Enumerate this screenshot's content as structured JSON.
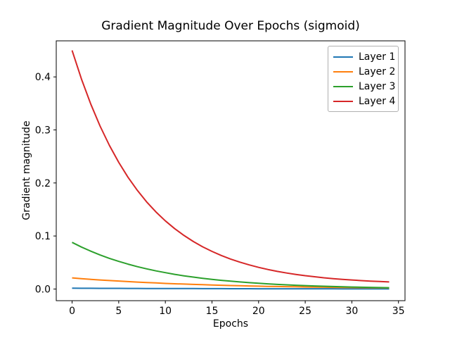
{
  "chart_data": {
    "type": "line",
    "title": "Gradient Magnitude Over Epochs (sigmoid)",
    "xlabel": "Epochs",
    "ylabel": "Gradient magnitude",
    "x": [
      0,
      1,
      2,
      3,
      4,
      5,
      6,
      7,
      8,
      9,
      10,
      11,
      12,
      13,
      14,
      15,
      16,
      17,
      18,
      19,
      20,
      21,
      22,
      23,
      24,
      25,
      26,
      27,
      28,
      29,
      30,
      31,
      32,
      33,
      34
    ],
    "series": [
      {
        "name": "Layer 1",
        "color": "#1f77b4",
        "values": [
          0.0015,
          0.0014,
          0.0014,
          0.0013,
          0.0012,
          0.0012,
          0.0011,
          0.0011,
          0.001,
          0.001,
          0.0009,
          0.0009,
          0.0008,
          0.0008,
          0.0007,
          0.0007,
          0.0007,
          0.0006,
          0.0006,
          0.0006,
          0.0005,
          0.0005,
          0.0005,
          0.0005,
          0.0004,
          0.0004,
          0.0004,
          0.0004,
          0.0004,
          0.0003,
          0.0003,
          0.0003,
          0.0003,
          0.0003,
          0.0003
        ]
      },
      {
        "name": "Layer 2",
        "color": "#ff7f0e",
        "values": [
          0.021,
          0.0196,
          0.0183,
          0.0171,
          0.016,
          0.015,
          0.014,
          0.0131,
          0.0122,
          0.0114,
          0.0106,
          0.0099,
          0.0093,
          0.0087,
          0.0081,
          0.0076,
          0.0071,
          0.0066,
          0.0062,
          0.0058,
          0.0054,
          0.005,
          0.0047,
          0.0044,
          0.0041,
          0.0038,
          0.0036,
          0.0034,
          0.0031,
          0.0029,
          0.0027,
          0.0026,
          0.0024,
          0.0022,
          0.0021
        ]
      },
      {
        "name": "Layer 3",
        "color": "#2ca02c",
        "values": [
          0.088,
          0.0792,
          0.0713,
          0.0642,
          0.0578,
          0.0521,
          0.0469,
          0.0422,
          0.038,
          0.0342,
          0.0308,
          0.0277,
          0.0249,
          0.0225,
          0.0202,
          0.0182,
          0.0164,
          0.0148,
          0.0133,
          0.012,
          0.0108,
          0.0097,
          0.0087,
          0.0079,
          0.0071,
          0.0064,
          0.0057,
          0.0052,
          0.0047,
          0.0042,
          0.0038,
          0.0034,
          0.0031,
          0.0027,
          0.0025
        ]
      },
      {
        "name": "Layer 4",
        "color": "#d62728",
        "values": [
          0.45,
          0.3961,
          0.3488,
          0.3073,
          0.2708,
          0.2388,
          0.2106,
          0.1859,
          0.1642,
          0.1452,
          0.1285,
          0.1138,
          0.1009,
          0.0896,
          0.0796,
          0.0709,
          0.0632,
          0.0565,
          0.0506,
          0.0454,
          0.0408,
          0.0368,
          0.0333,
          0.0302,
          0.0275,
          0.0251,
          0.0231,
          0.0212,
          0.0196,
          0.0182,
          0.017,
          0.0159,
          0.0149,
          0.0141,
          0.0133
        ]
      }
    ],
    "x_ticks": [
      "0",
      "5",
      "10",
      "15",
      "20",
      "25",
      "30",
      "35"
    ],
    "y_ticks": [
      "0.0",
      "0.1",
      "0.2",
      "0.3",
      "0.4"
    ],
    "xlim": [
      -1.7,
      35.7
    ],
    "ylim": [
      -0.022,
      0.468
    ],
    "grid": false,
    "legend_position": "upper right",
    "background_color": "#ffffff",
    "axis_color": "#000000"
  }
}
